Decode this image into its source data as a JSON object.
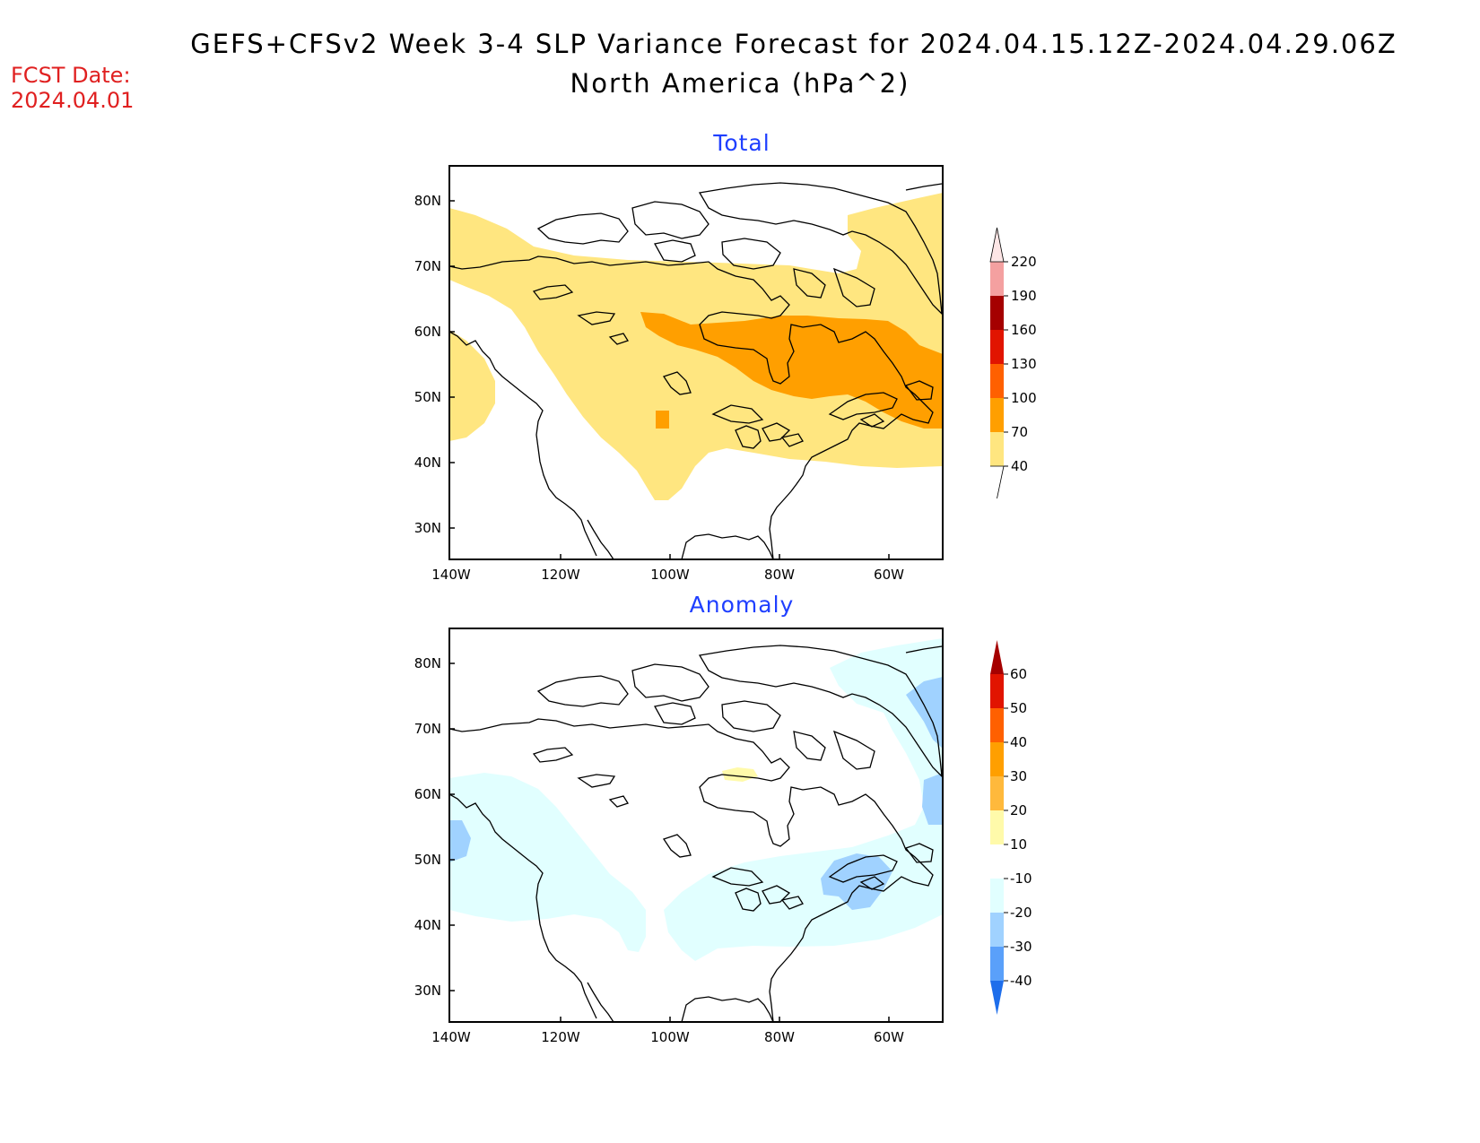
{
  "title": {
    "line1": "GEFS+CFSv2 Week 3-4 SLP Variance Forecast for 2024.04.15.12Z-2024.04.29.06Z",
    "line2": "North America (hPa^2)"
  },
  "forecast_date": {
    "label": "FCST Date:",
    "value": "2024.04.01"
  },
  "map": {
    "lat_labels": [
      "80N",
      "70N",
      "60N",
      "50N",
      "40N",
      "30N"
    ],
    "lon_labels": [
      "140W",
      "120W",
      "100W",
      "80W",
      "60W"
    ]
  },
  "panels": {
    "total": {
      "title": "Total",
      "colorbar": {
        "levels": [
          "40",
          "70",
          "100",
          "130",
          "160",
          "190",
          "220"
        ],
        "colors": [
          "#ffe680",
          "#ff9f00",
          "#ff6000",
          "#e11400",
          "#a50000",
          "#f4a0a0",
          "#fde6e6"
        ]
      }
    },
    "anomaly": {
      "title": "Anomaly",
      "colorbar": {
        "levels": [
          "60",
          "50",
          "40",
          "30",
          "20",
          "10",
          "-10",
          "-20",
          "-30",
          "-40"
        ],
        "colors": [
          "#a50000",
          "#e11400",
          "#ff6000",
          "#ff9f00",
          "#ffb93c",
          "#fffaaa",
          "#ffffff",
          "#e1ffff",
          "#a0d2ff",
          "#5aa0fa",
          "#1e6eeb"
        ]
      }
    }
  }
}
